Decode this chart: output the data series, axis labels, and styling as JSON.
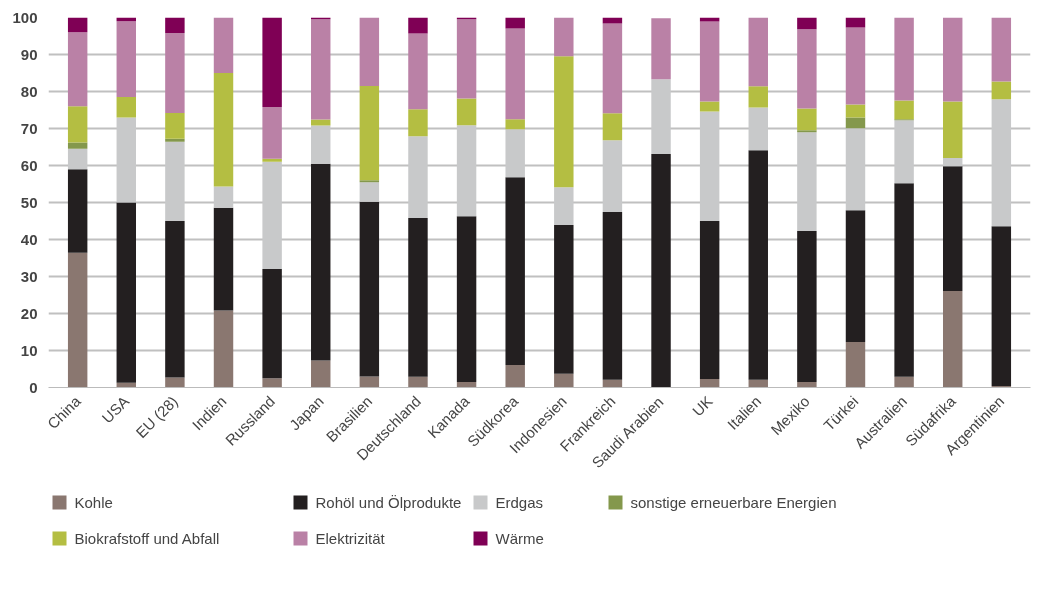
{
  "chart_data": {
    "type": "bar",
    "stacked": true,
    "categories": [
      "China",
      "USA",
      "EU (28)",
      "Indien",
      "Russland",
      "Japan",
      "Brasilien",
      "Deutschland",
      "Kanada",
      "Südkorea",
      "Indonesien",
      "Frankreich",
      "Saudi Arabien",
      "UK",
      "Italien",
      "Mexiko",
      "Türkei",
      "Australien",
      "Südafrika",
      "Argentinien"
    ],
    "series": [
      {
        "name": "Kohle",
        "color": "#8a7770",
        "values": [
          36.4,
          1.3,
          2.7,
          20.8,
          2.5,
          7.3,
          3,
          2.9,
          1.5,
          6.1,
          3.7,
          2.1,
          null,
          2.3,
          2.1,
          1.5,
          12.3,
          2.9,
          26.1,
          0.4
        ]
      },
      {
        "name": "Rohöl und Ölprodukte",
        "color": "#231f20",
        "values": [
          22.6,
          48.7,
          42.3,
          27.8,
          29.5,
          53.2,
          47.2,
          42.9,
          44.8,
          50.7,
          40.2,
          45.3,
          63.1,
          42.7,
          62,
          40.8,
          35.6,
          52.3,
          33.7,
          43.2
        ]
      },
      {
        "name": "Erdgas",
        "color": "#c8c9ca",
        "values": [
          5.5,
          23,
          21.4,
          5.7,
          29,
          10.3,
          5.3,
          22.1,
          24.6,
          13,
          10.2,
          19.4,
          20.2,
          29.6,
          11.6,
          26.7,
          22.2,
          17,
          2.2,
          34.3
        ]
      },
      {
        "name": "sonstige erneuerbare Energien",
        "color": "#84984c",
        "values": [
          1.7,
          0,
          0.8,
          0,
          0,
          0,
          0.5,
          0,
          0,
          0,
          0,
          0,
          0,
          0,
          0,
          0.5,
          2.9,
          0.3,
          0,
          0
        ]
      },
      {
        "name": "Biokrafstoff und Abfall",
        "color": "#b4be42",
        "values": [
          9.8,
          5.5,
          7,
          30.7,
          0.8,
          1.6,
          25.5,
          7.3,
          7.2,
          2.7,
          35.4,
          7.3,
          0,
          2.7,
          5.7,
          5.9,
          3.5,
          5.1,
          15.3,
          4.8
        ]
      },
      {
        "name": "Elektrizität",
        "color": "#ba81a6",
        "values": [
          20,
          20.5,
          21.6,
          15,
          14,
          27.1,
          18.5,
          20.5,
          21.4,
          24.5,
          10.5,
          24.3,
          16.5,
          21.6,
          18.6,
          21.4,
          20.8,
          22.4,
          22.7,
          17.3
        ]
      },
      {
        "name": "Wärme",
        "color": "#7f0055",
        "values": [
          4,
          1,
          4.2,
          0,
          24.2,
          0.5,
          0,
          4.3,
          0.5,
          3,
          0,
          1.6,
          0,
          1.1,
          0,
          3.2,
          2.7,
          0,
          0,
          0
        ]
      }
    ],
    "ylim": [
      0,
      100
    ],
    "yticks": [
      0,
      10,
      20,
      30,
      40,
      50,
      60,
      70,
      80,
      90,
      100
    ],
    "grid": "y",
    "legend": "bottom"
  }
}
